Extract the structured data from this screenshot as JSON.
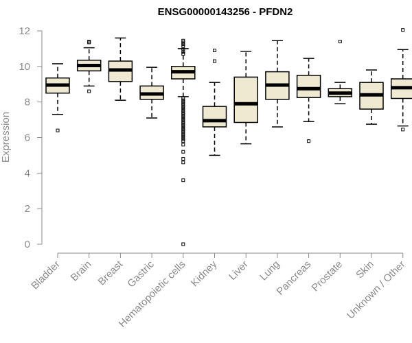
{
  "chart_data": {
    "type": "boxplot",
    "title": "ENSG00000143256 - PFDN2",
    "ylabel": "Expression",
    "xlabel": "",
    "ylim": [
      0,
      12
    ],
    "yticks": [
      0,
      2,
      4,
      6,
      8,
      10,
      12
    ],
    "box_fill": "#efe9d1",
    "categories": [
      "Bladder",
      "Brain",
      "Breast",
      "Gastric",
      "Hematopoietic cells",
      "Kidney",
      "Liver",
      "Lung",
      "Pancreas",
      "Prostate",
      "Skin",
      "Unknown / Other"
    ],
    "boxes": [
      {
        "min": 7.3,
        "q1": 8.5,
        "median": 8.95,
        "q3": 9.35,
        "max": 10.15,
        "outliers": [
          6.4
        ]
      },
      {
        "min": 8.9,
        "q1": 9.75,
        "median": 10.05,
        "q3": 10.35,
        "max": 11.05,
        "outliers": [
          11.4,
          11.35,
          8.6
        ]
      },
      {
        "min": 8.1,
        "q1": 9.15,
        "median": 9.8,
        "q3": 10.3,
        "max": 11.6,
        "outliers": []
      },
      {
        "min": 7.1,
        "q1": 8.15,
        "median": 8.45,
        "q3": 8.9,
        "max": 9.95,
        "outliers": []
      },
      {
        "min": 8.3,
        "q1": 9.3,
        "median": 9.7,
        "q3": 10.0,
        "max": 11.0,
        "outliers": [
          11.45,
          11.35,
          11.25,
          11.15,
          10.95,
          10.8,
          10.7,
          8.2,
          8.1,
          8.0,
          7.9,
          7.8,
          7.7,
          7.6,
          7.5,
          7.4,
          7.3,
          7.2,
          7.1,
          7.0,
          6.9,
          6.8,
          6.7,
          6.6,
          6.5,
          6.4,
          6.3,
          6.2,
          6.1,
          6.0,
          5.9,
          5.8,
          5.6,
          5.2,
          4.8,
          4.6,
          3.6,
          0.0
        ]
      },
      {
        "min": 5.0,
        "q1": 6.6,
        "median": 6.95,
        "q3": 7.75,
        "max": 9.1,
        "outliers": [
          10.9,
          10.3
        ]
      },
      {
        "min": 5.65,
        "q1": 6.85,
        "median": 7.9,
        "q3": 9.4,
        "max": 10.85,
        "outliers": []
      },
      {
        "min": 6.6,
        "q1": 8.15,
        "median": 8.95,
        "q3": 9.7,
        "max": 11.45,
        "outliers": []
      },
      {
        "min": 6.9,
        "q1": 8.25,
        "median": 8.75,
        "q3": 9.5,
        "max": 10.45,
        "outliers": [
          5.8
        ]
      },
      {
        "min": 7.9,
        "q1": 8.3,
        "median": 8.5,
        "q3": 8.75,
        "max": 9.1,
        "outliers": [
          11.4
        ]
      },
      {
        "min": 6.75,
        "q1": 7.6,
        "median": 8.4,
        "q3": 9.1,
        "max": 9.8,
        "outliers": []
      },
      {
        "min": 6.65,
        "q1": 8.2,
        "median": 8.8,
        "q3": 9.3,
        "max": 10.95,
        "outliers": [
          12.05,
          6.45
        ]
      }
    ]
  }
}
